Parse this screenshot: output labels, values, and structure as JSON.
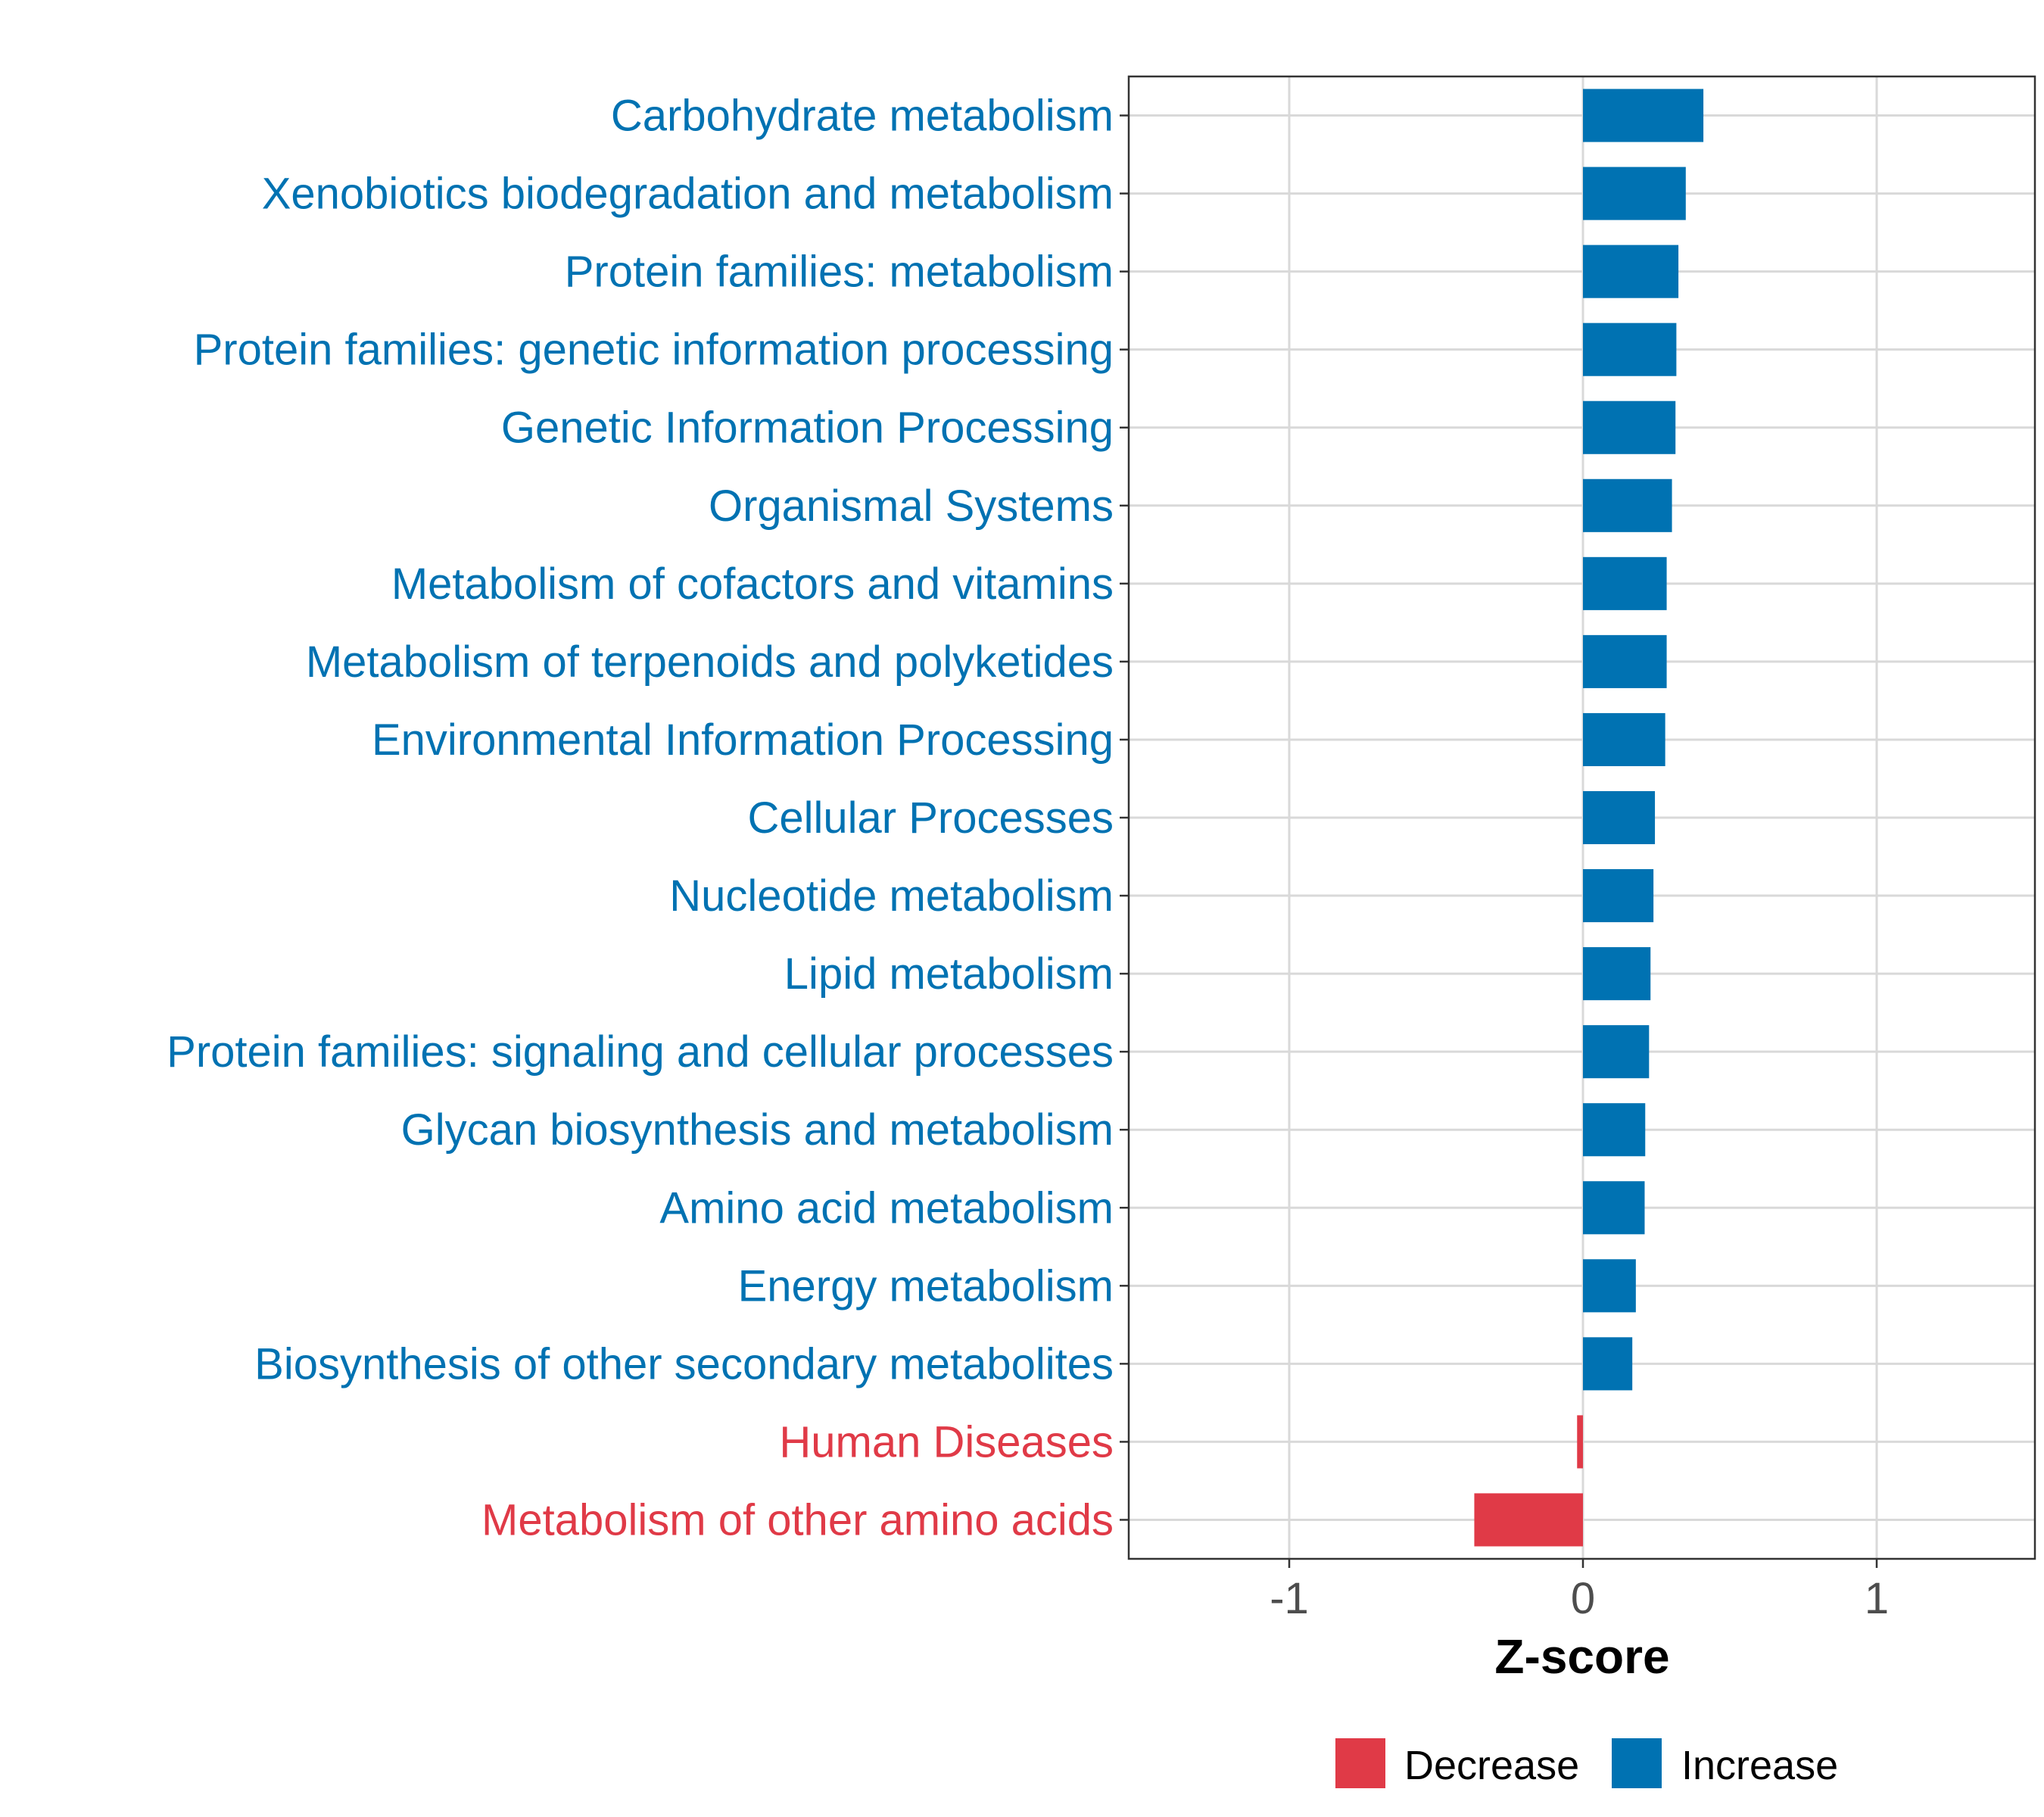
{
  "chart_data": {
    "type": "bar",
    "orientation": "horizontal",
    "title": "",
    "xlabel": "Z-score",
    "ylabel": "",
    "xlim": [
      -1.5,
      1.5
    ],
    "x_ticks": [
      -1,
      0,
      1
    ],
    "x_tick_labels": [
      "-1",
      "0",
      "1"
    ],
    "grid": true,
    "categories": [
      "Carbohydrate metabolism",
      "Xenobiotics biodegradation and metabolism",
      "Protein families: metabolism",
      "Protein families: genetic information processing",
      "Genetic Information Processing",
      "Organismal Systems",
      "Metabolism of cofactors and vitamins",
      "Metabolism of terpenoids and polyketides",
      "Environmental Information Processing",
      "Cellular Processes",
      "Nucleotide metabolism",
      "Lipid metabolism",
      "Protein families: signaling and cellular processes",
      "Glycan biosynthesis and metabolism",
      "Amino acid metabolism",
      "Energy metabolism",
      "Biosynthesis of other secondary metabolites",
      "Human Diseases",
      "Metabolism of other amino acids"
    ],
    "values": [
      0.41,
      0.35,
      0.325,
      0.318,
      0.315,
      0.303,
      0.285,
      0.285,
      0.28,
      0.245,
      0.24,
      0.23,
      0.225,
      0.212,
      0.21,
      0.18,
      0.168,
      -0.02,
      -0.37
    ],
    "legend": {
      "placement": "bottom",
      "entries": [
        {
          "label": "Decrease",
          "color": "#E03A47"
        },
        {
          "label": "Increase",
          "color": "#0072B2"
        }
      ]
    },
    "colors": {
      "increase": "#0072B2",
      "decrease": "#E03A47"
    }
  }
}
